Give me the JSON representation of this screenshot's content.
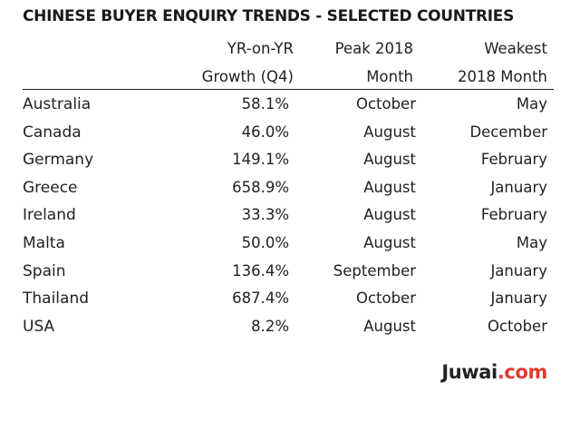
{
  "title": "CHINESE BUYER ENQUIRY TRENDS - SELECTED COUNTRIES",
  "headers": {
    "growth": [
      "YR-on-YR",
      "Growth (Q4)"
    ],
    "peak": [
      "Peak 2018",
      "Month"
    ],
    "weakest": [
      "Weakest",
      "2018 Month"
    ]
  },
  "rows": [
    {
      "country": "Australia",
      "growth": "58.1%",
      "peak": "October",
      "weakest": "May"
    },
    {
      "country": "Canada",
      "growth": "46.0%",
      "peak": "August",
      "weakest": "December"
    },
    {
      "country": "Germany",
      "growth": "149.1%",
      "peak": "August",
      "weakest": "February"
    },
    {
      "country": "Greece",
      "growth": "658.9%",
      "peak": "August",
      "weakest": "January"
    },
    {
      "country": "Ireland",
      "growth": "33.3%",
      "peak": "August",
      "weakest": "February"
    },
    {
      "country": "Malta",
      "growth": "50.0%",
      "peak": "August",
      "weakest": "May"
    },
    {
      "country": "Spain",
      "growth": "136.4%",
      "peak": "September",
      "weakest": "January"
    },
    {
      "country": "Thailand",
      "growth": "687.4%",
      "peak": "October",
      "weakest": "January"
    },
    {
      "country": "USA",
      "growth": "8.2%",
      "peak": "August",
      "weakest": "October"
    }
  ],
  "logo": {
    "part1": "Juwai",
    "part2": ".com",
    "colors": {
      "part1": "#222222",
      "part2": "#e03a2f"
    }
  }
}
